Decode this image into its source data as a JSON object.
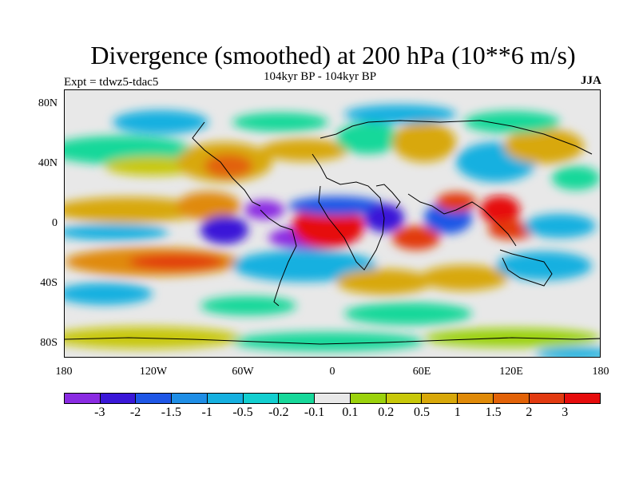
{
  "title": "Divergence (smoothed) at 200 hPa (10**6 m/s)",
  "subtitle": "104kyr BP - 104kyr BP",
  "experiment": "Expt = tdwz5-tdac5",
  "season": "JJA",
  "y_axis_labels": [
    "80N",
    "40N",
    "0",
    "40S",
    "80S"
  ],
  "x_axis_labels": [
    "180",
    "120W",
    "60W",
    "0",
    "60E",
    "120E",
    "180"
  ],
  "colorbar": {
    "colors": [
      "#8a2be2",
      "#3a17d8",
      "#1e56e6",
      "#1f8ee6",
      "#16b0e0",
      "#13cfd0",
      "#17d89a",
      "#e8e8e8",
      "#9bd20c",
      "#c8c80a",
      "#d8a80a",
      "#e08a08",
      "#e26208",
      "#e23a10",
      "#e60c0c"
    ],
    "labels": [
      "-3",
      "-2",
      "-1.5",
      "-1",
      "-0.5",
      "-0.2",
      "-0.1",
      "0.1",
      "0.2",
      "0.5",
      "1",
      "1.5",
      "2",
      "3"
    ]
  },
  "palette": {
    "frame": "#000000",
    "background": "#ffffff",
    "coast": "#000000"
  }
}
